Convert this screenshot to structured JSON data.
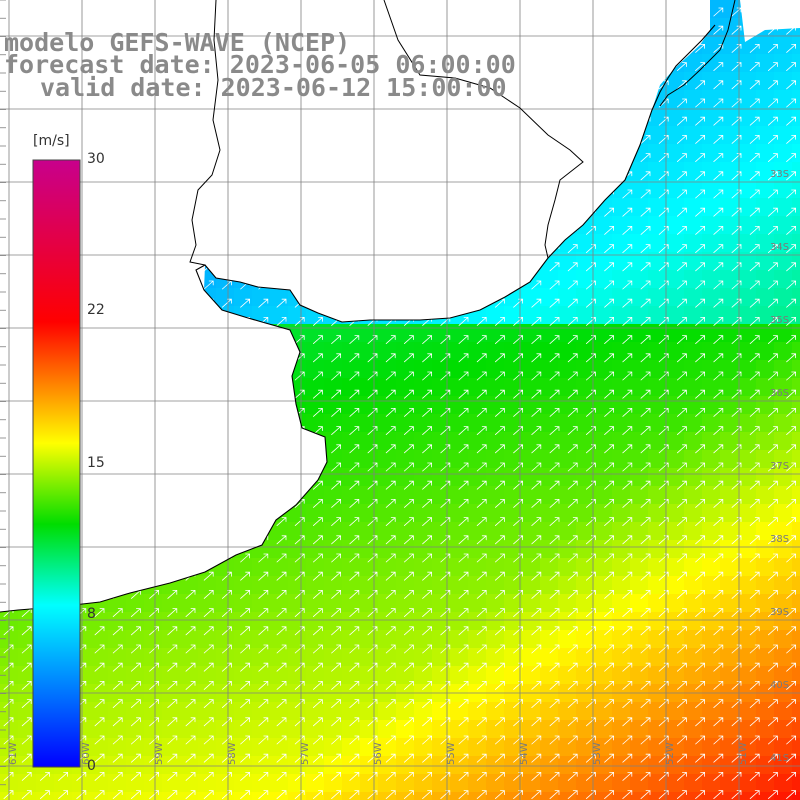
{
  "title": {
    "line1": "modelo GEFS-WAVE (NCEP)",
    "line2": "forecast date: 2023-06-05 06:00:00",
    "line3": "valid date: 2023-06-12 15:00:00"
  },
  "colorbar": {
    "unit": "[m/s]",
    "ticks": [
      "30",
      "22",
      "15",
      "8",
      "0"
    ],
    "tick_values": [
      30,
      22,
      15,
      8,
      0
    ],
    "min": 0,
    "max": 30,
    "colors": [
      "#0000ff",
      "#00ffff",
      "#00dd00",
      "#ffff00",
      "#ff0000",
      "#c8008c"
    ]
  },
  "map": {
    "field": "wind speed",
    "lat_labels": [
      "33S",
      "34S",
      "35S",
      "36S",
      "37S",
      "38S",
      "39S",
      "40S",
      "41S"
    ],
    "lon_labels": [
      "61W",
      "60W",
      "59W",
      "58W",
      "57W",
      "56W",
      "55W",
      "54W",
      "53W",
      "52W",
      "51W"
    ],
    "land_color": "#ffffff",
    "grid_color": "#808080",
    "coast_color": "#000000",
    "arrow_color": "#ffffff"
  }
}
